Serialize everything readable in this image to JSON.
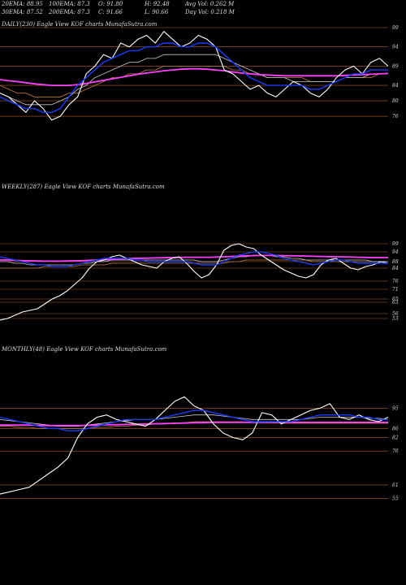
{
  "header": {
    "row1": [
      {
        "id": "ema20",
        "text": "20EMA: 88.95"
      },
      {
        "id": "ema100",
        "text": "100EMA: 87.3"
      },
      {
        "id": "open",
        "text": "O: 91.80"
      },
      {
        "id": "high",
        "text": "H: 92.48"
      },
      {
        "id": "avgvol",
        "text": "Avg Vol: 0.262  M"
      }
    ],
    "row2": [
      {
        "id": "ema30",
        "text": "30EMA: 87.52"
      },
      {
        "id": "ema200",
        "text": "200EMA: 87.3"
      },
      {
        "id": "close",
        "text": "C: 91.66"
      },
      {
        "id": "low",
        "text": "L: 90.66"
      },
      {
        "id": "dayvol",
        "text": "Day Vol: 0.218  M"
      }
    ]
  },
  "colors": {
    "background": "#000000",
    "price": "#ffffff",
    "ema_fast": "#1a3cff",
    "ema_mid": "#c8c8c8",
    "ema_slow": "#c08040",
    "ema_long": "#ff40ff",
    "grid": "#b0602a"
  },
  "chart_data": [
    {
      "type": "line",
      "label": "DAILY(230) Eagle  View  KOF charts MunafaSutra.com",
      "yticks": [
        99,
        94,
        89,
        84,
        80,
        76
      ],
      "ylim": [
        72,
        99
      ],
      "series": [
        {
          "role": "price",
          "values": [
            82,
            81,
            79,
            77,
            80,
            78,
            75,
            76,
            79,
            81,
            87,
            89,
            92,
            91,
            95,
            94,
            96,
            97,
            95,
            98,
            96,
            94,
            95,
            97,
            96,
            94,
            88,
            87,
            85,
            83,
            84,
            82,
            81,
            83,
            85,
            84,
            82,
            81,
            83,
            86,
            88,
            89,
            87,
            90,
            91,
            89
          ]
        },
        {
          "role": "ema_fast",
          "values": [
            81,
            80,
            79,
            78,
            78,
            77,
            77,
            78,
            81,
            84,
            86,
            88,
            90,
            91,
            92,
            93,
            93,
            94,
            94,
            95,
            95,
            94,
            94,
            95,
            95,
            94,
            92,
            90,
            88,
            86,
            85,
            84,
            84,
            84,
            84,
            84,
            83,
            83,
            84,
            85,
            86,
            87,
            87,
            88,
            88,
            88
          ]
        },
        {
          "role": "ema_mid",
          "values": [
            82,
            81,
            80,
            79,
            79,
            79,
            79,
            80,
            81,
            83,
            84,
            86,
            87,
            88,
            89,
            90,
            90,
            91,
            91,
            92,
            92,
            92,
            92,
            92,
            92,
            92,
            91,
            90,
            89,
            88,
            87,
            86,
            86,
            86,
            85,
            85,
            85,
            85,
            85,
            85,
            86,
            86,
            86,
            87,
            87,
            87
          ]
        },
        {
          "role": "ema_slow",
          "values": [
            84,
            83,
            82,
            82,
            81,
            81,
            81,
            81,
            82,
            82,
            83,
            84,
            85,
            86,
            86,
            87,
            87,
            88,
            88,
            89,
            89,
            89,
            89,
            89,
            89,
            89,
            89,
            88,
            88,
            87,
            87,
            86,
            86,
            86,
            86,
            86,
            85,
            85,
            85,
            85,
            86,
            86,
            86,
            86,
            87,
            87
          ]
        },
        {
          "role": "ema_long",
          "values": [
            85.5,
            85.2,
            85,
            84.7,
            84.4,
            84.2,
            84,
            84,
            84,
            84.2,
            84.5,
            84.9,
            85.3,
            85.7,
            86.1,
            86.5,
            86.9,
            87.2,
            87.5,
            87.8,
            88,
            88.2,
            88.3,
            88.3,
            88.2,
            88,
            87.8,
            87.5,
            87.2,
            87,
            86.8,
            86.7,
            86.6,
            86.5,
            86.5,
            86.5,
            86.5,
            86.5,
            86.5,
            86.5,
            86.6,
            86.7,
            86.8,
            86.9,
            87,
            87.1
          ]
        }
      ]
    },
    {
      "type": "line",
      "label": "WEEKLY(287) Eagle  View  KOF charts MunafaSutra.com",
      "yticks": [
        99,
        94,
        88,
        84,
        76,
        71,
        65,
        63,
        56,
        53
      ],
      "ylim": [
        50,
        102
      ],
      "series": [
        {
          "role": "price",
          "values": [
            52,
            53,
            55,
            57,
            58,
            59,
            62,
            65,
            67,
            70,
            74,
            78,
            84,
            88,
            89,
            91,
            92,
            90,
            88,
            86,
            85,
            84,
            88,
            90,
            91,
            87,
            82,
            78,
            80,
            86,
            95,
            98,
            99,
            97,
            96,
            92,
            89,
            86,
            83,
            81,
            79,
            78,
            80,
            86,
            89,
            90,
            87,
            84,
            83,
            85,
            86,
            88,
            87
          ]
        },
        {
          "role": "ema_fast",
          "values": [
            91,
            90,
            89,
            88,
            87,
            86,
            86,
            85,
            85,
            85,
            86,
            87,
            88,
            89,
            90,
            90,
            90,
            90,
            89,
            89,
            88,
            88,
            88,
            88,
            88,
            88,
            87,
            86,
            86,
            86,
            88,
            90,
            92,
            93,
            94,
            94,
            93,
            92,
            90,
            89,
            88,
            87,
            86,
            87,
            88,
            89,
            89,
            88,
            87,
            87,
            87,
            87,
            87
          ]
        },
        {
          "role": "ema_mid",
          "values": [
            88,
            88,
            87,
            87,
            86,
            86,
            86,
            86,
            86,
            86,
            86,
            87,
            87,
            88,
            88,
            89,
            89,
            89,
            89,
            89,
            89,
            89,
            89,
            89,
            89,
            89,
            89,
            88,
            88,
            88,
            89,
            90,
            91,
            91,
            92,
            92,
            92,
            91,
            91,
            90,
            90,
            89,
            89,
            89,
            89,
            89,
            89,
            89,
            89,
            89,
            88,
            88,
            88
          ]
        },
        {
          "role": "ema_slow",
          "values": [
            84,
            84,
            84,
            84,
            84,
            84,
            85,
            85,
            85,
            85,
            85,
            86,
            86,
            86,
            86,
            87,
            87,
            87,
            87,
            87,
            87,
            87,
            87,
            87,
            87,
            87,
            87,
            87,
            87,
            87,
            87,
            88,
            88,
            89,
            89,
            89,
            89,
            89,
            89,
            89,
            89,
            89,
            88,
            88,
            88,
            88,
            88,
            88,
            88,
            88,
            88,
            88,
            88
          ]
        },
        {
          "role": "ema_long",
          "values": [
            89,
            89,
            88.8,
            88.6,
            88.5,
            88.4,
            88.3,
            88.3,
            88.3,
            88.4,
            88.5,
            88.6,
            88.8,
            89,
            89.2,
            89.4,
            89.6,
            89.8,
            90,
            90.1,
            90.2,
            90.3,
            90.4,
            90.5,
            90.6,
            90.7,
            90.7,
            90.7,
            90.7,
            90.8,
            91,
            91.2,
            91.4,
            91.6,
            91.7,
            91.8,
            91.8,
            91.8,
            91.7,
            91.6,
            91.5,
            91.4,
            91.3,
            91.2,
            91.1,
            91,
            90.9,
            90.8,
            90.7,
            90.6,
            90.5,
            90.5,
            90.5
          ]
        }
      ]
    },
    {
      "type": "line",
      "label": "MONTHLY(48) Eagle  View  KOF charts MunafaSutra.com",
      "yticks": [
        95,
        86,
        82,
        76,
        61,
        55
      ],
      "ylim": [
        52,
        98
      ],
      "series": [
        {
          "role": "price",
          "values": [
            57,
            58,
            59,
            60,
            63,
            66,
            69,
            73,
            82,
            88,
            91,
            92,
            90,
            89,
            88,
            87,
            90,
            94,
            98,
            100,
            96,
            94,
            88,
            84,
            82,
            81,
            84,
            93,
            92,
            88,
            90,
            92,
            94,
            95,
            97,
            91,
            90,
            92,
            90,
            89,
            91
          ]
        },
        {
          "role": "ema_fast",
          "values": [
            91,
            90,
            89,
            88,
            87,
            86,
            86,
            85,
            85,
            86,
            87,
            88,
            89,
            90,
            90,
            90,
            90,
            91,
            92,
            93,
            94,
            94,
            93,
            92,
            91,
            90,
            89,
            89,
            89,
            89,
            89,
            90,
            91,
            92,
            92,
            92,
            92,
            91,
            91,
            90,
            90
          ]
        },
        {
          "role": "ema_mid",
          "values": [
            90,
            89.5,
            89,
            88.5,
            88,
            87.5,
            87,
            87,
            87,
            87.5,
            88,
            88.5,
            89,
            89.5,
            90,
            90,
            90,
            90.5,
            91,
            91.5,
            92,
            92,
            92,
            91.5,
            91,
            90.5,
            90,
            90,
            90,
            90,
            90,
            90,
            90.5,
            91,
            91,
            91,
            91,
            91,
            90.5,
            90.5,
            90
          ]
        },
        {
          "role": "ema_slow",
          "values": [
            87,
            87,
            86.5,
            86.5,
            86,
            86,
            86,
            86,
            86,
            86,
            86.5,
            86.5,
            87,
            87,
            87.5,
            87.5,
            88,
            88,
            88.5,
            88.5,
            89,
            89,
            89,
            89,
            89,
            89,
            88.8,
            88.6,
            88.5,
            88.4,
            88.3,
            88.3,
            88.3,
            88.3,
            88.3,
            88.3,
            88.3,
            88.3,
            88.3,
            88.3,
            88.3
          ]
        },
        {
          "role": "ema_long",
          "values": [
            87.5,
            87.5,
            87.5,
            87.5,
            87.4,
            87.3,
            87.3,
            87.3,
            87.3,
            87.4,
            87.5,
            87.6,
            87.7,
            87.8,
            87.9,
            88,
            88.1,
            88.2,
            88.3,
            88.4,
            88.5,
            88.6,
            88.7,
            88.7,
            88.7,
            88.7,
            88.7,
            88.7,
            88.7,
            88.7,
            88.7,
            88.7,
            88.7,
            88.7,
            88.7,
            88.7,
            88.7,
            88.7,
            88.7,
            88.7,
            88.7
          ]
        }
      ]
    }
  ]
}
